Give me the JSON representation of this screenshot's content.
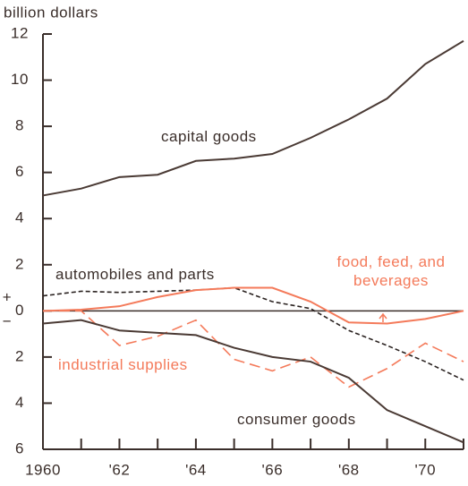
{
  "chart_data": {
    "type": "line",
    "y_label": "billion dollars",
    "sign_labels": [
      "+",
      "−"
    ],
    "x": [
      1960,
      1961,
      1962,
      1963,
      1964,
      1965,
      1966,
      1967,
      1968,
      1969,
      1970,
      1971
    ],
    "xlim": [
      1960,
      1971
    ],
    "xticks": [
      {
        "value": 1960,
        "label": "1960"
      },
      {
        "value": 1962,
        "label": "'62"
      },
      {
        "value": 1964,
        "label": "'64"
      },
      {
        "value": 1966,
        "label": "'66"
      },
      {
        "value": 1968,
        "label": "'68"
      },
      {
        "value": 1970,
        "label": "'70"
      }
    ],
    "xminorticks": [
      1961,
      1963,
      1965,
      1967,
      1969,
      1971
    ],
    "ylim": [
      -6,
      12
    ],
    "yticks": [
      {
        "value": -6,
        "label": "6"
      },
      {
        "value": -4,
        "label": "4"
      },
      {
        "value": -2,
        "label": "2"
      },
      0,
      2,
      4,
      6,
      8,
      10,
      12
    ],
    "series": [
      {
        "name": "capital goods",
        "color": "#4a3a34",
        "style": "solid",
        "values": [
          5.0,
          5.3,
          5.8,
          5.9,
          6.5,
          6.6,
          6.8,
          7.5,
          8.3,
          9.2,
          10.7,
          11.7
        ]
      },
      {
        "name": "automobiles and parts",
        "color": "#2a2220",
        "style": "dashed",
        "values": [
          0.65,
          0.85,
          0.8,
          0.85,
          0.9,
          1.0,
          0.4,
          0.1,
          -0.85,
          -1.5,
          -2.2,
          -3.0
        ]
      },
      {
        "name": "food, feed, and beverages",
        "color": "#f47a5a",
        "style": "solid",
        "values": [
          0,
          0.05,
          0.2,
          0.6,
          0.9,
          1.0,
          1.0,
          0.4,
          -0.5,
          -0.55,
          -0.35,
          0
        ]
      },
      {
        "name": "industrial supplies",
        "color": "#f47a5a",
        "style": "dashed",
        "values": [
          0,
          0,
          -1.5,
          -1.1,
          -0.4,
          -2.1,
          -2.6,
          -2.0,
          -3.3,
          -2.5,
          -1.4,
          -2.2
        ]
      },
      {
        "name": "consumer goods",
        "color": "#4a3a34",
        "style": "solid",
        "values": [
          -0.55,
          -0.4,
          -0.85,
          -0.95,
          -1.05,
          -1.6,
          -2.0,
          -2.2,
          -2.9,
          -4.3,
          -5.0,
          -5.7
        ]
      }
    ]
  }
}
